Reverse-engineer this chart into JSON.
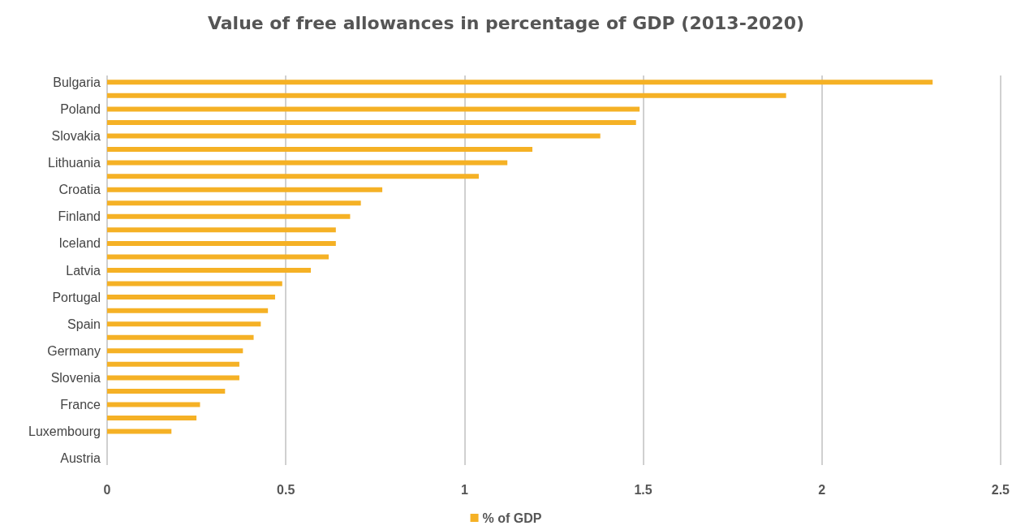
{
  "chart_data": {
    "type": "bar",
    "orientation": "horizontal",
    "title": "Value of free allowances in percentage of GDP (2013-2020)",
    "categories": [
      "Bulgaria",
      null,
      "Poland",
      null,
      "Slovakia",
      null,
      "Lithuania",
      null,
      "Croatia",
      null,
      "Finland",
      null,
      "Iceland",
      null,
      "Latvia",
      null,
      "Portugal",
      null,
      "Spain",
      null,
      "Germany",
      null,
      "Slovenia",
      null,
      "France",
      null,
      "Luxembourg",
      null,
      "Austria"
    ],
    "series": [
      {
        "name": "% of GDP",
        "color": "#f5b125",
        "values": [
          2.31,
          1.9,
          1.49,
          1.48,
          1.38,
          1.19,
          1.12,
          1.04,
          0.77,
          0.71,
          0.68,
          0.64,
          0.64,
          0.62,
          0.57,
          0.49,
          0.47,
          0.45,
          0.43,
          0.41,
          0.38,
          0.37,
          0.37,
          0.33,
          0.26,
          0.25,
          0.18,
          0,
          0
        ]
      }
    ],
    "xlim": [
      0,
      2.5
    ],
    "xticks": [
      0,
      0.5,
      1,
      1.5,
      2,
      2.5
    ],
    "grid": "x",
    "legend": "bottom"
  }
}
